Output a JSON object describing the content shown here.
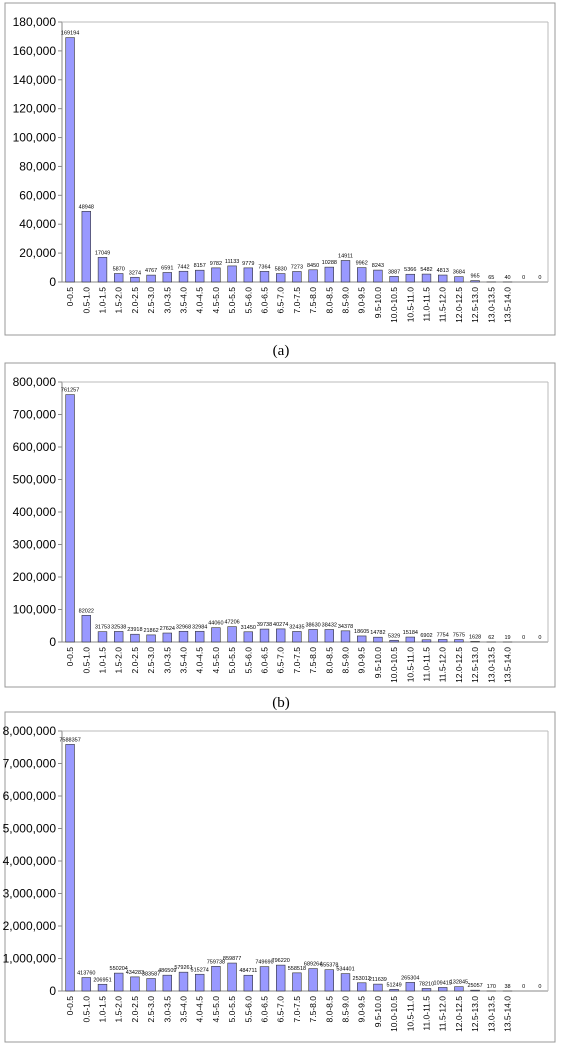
{
  "chart_data": [
    {
      "type": "bar",
      "color": "#9999ff",
      "categories": [
        "0-0.5",
        "0.5-1.0",
        "1.0-1.5",
        "1.5-2.0",
        "2.0-2.5",
        "2.5-3.0",
        "3.0-3.5",
        "3.5-4.0",
        "4.0-4.5",
        "4.5-5.0",
        "5.0-5.5",
        "5.5-6.0",
        "6.0-6.5",
        "6.5-7.0",
        "7.0-7.5",
        "7.5-8.0",
        "8.0-8.5",
        "8.5-9.0",
        "9.0-9.5",
        "9.5-10.0",
        "10.0-10.5",
        "10.5-11.0",
        "11.0-11.5",
        "11.5-12.0",
        "12.0-12.5",
        "12.5-13.0",
        "13.0-13.5",
        "13.5-14.0",
        null,
        null
      ],
      "values": [
        169194,
        48948,
        17049,
        5870,
        3274,
        4767,
        6591,
        7442,
        8157,
        9782,
        11133,
        9779,
        7364,
        5830,
        7273,
        8450,
        10288,
        14911,
        9962,
        8243,
        3887,
        5366,
        5482,
        4813,
        3684,
        965,
        65,
        40,
        0,
        0
      ],
      "ylim": [
        0,
        180000
      ],
      "yticks": [
        0,
        {
          "value": 20000,
          "label": "20,000"
        },
        {
          "value": 40000,
          "label": "40,000"
        },
        {
          "value": 60000,
          "label": "60,000"
        },
        {
          "value": 80000,
          "label": "80,000"
        },
        {
          "value": 100000,
          "label": "100,000"
        },
        {
          "value": 120000,
          "label": "120,000"
        },
        {
          "value": 140000,
          "label": "140,000"
        },
        {
          "value": 160000,
          "label": "160,000"
        },
        {
          "value": 180000,
          "label": "180,000"
        }
      ],
      "caption": "(a)"
    },
    {
      "type": "bar",
      "color": "#9999ff",
      "categories": [
        "0-0.5",
        "0.5-1.0",
        "1.0-1.5",
        "1.5-2.0",
        "2.0-2.5",
        "2.5-3.0",
        "3.0-3.5",
        "3.5-4.0",
        "4.0-4.5",
        "4.5-5.0",
        "5.0-5.5",
        "5.5-6.0",
        "6.0-6.5",
        "6.5-7.0",
        "7.0-7.5",
        "7.5-8.0",
        "8.0-8.5",
        "8.5-9.0",
        "9.0-9.5",
        "9.5-10.0",
        "10.0-10.5",
        "10.5-11.0",
        "11.0-11.5",
        "11.5-12.0",
        "12.0-12.5",
        "12.5-13.0",
        "13.0-13.5",
        "13.5-14.0",
        null,
        null
      ],
      "values": [
        761257,
        82022,
        31753,
        32538,
        23918,
        21862,
        27624,
        32968,
        32984,
        44060,
        47206,
        31450,
        39738,
        40274,
        32435,
        38630,
        38432,
        34378,
        18605,
        14782,
        5329,
        15184,
        6902,
        7754,
        7575,
        1628,
        62,
        19,
        0,
        0
      ],
      "ylim": [
        0,
        800000
      ],
      "yticks": [
        0,
        {
          "value": 100000,
          "label": "100,000"
        },
        {
          "value": 200000,
          "label": "200,000"
        },
        {
          "value": 300000,
          "label": "300,000"
        },
        {
          "value": 400000,
          "label": "400,000"
        },
        {
          "value": 500000,
          "label": "500,000"
        },
        {
          "value": 600000,
          "label": "600,000"
        },
        {
          "value": 700000,
          "label": "700,000"
        },
        {
          "value": 800000,
          "label": "800,000"
        }
      ],
      "caption": "(b)"
    },
    {
      "type": "bar",
      "color": "#9999ff",
      "categories": [
        "0-0.5",
        "0.5-1.0",
        "1.0-1.5",
        "1.5-2.0",
        "2.0-2.5",
        "2.5-3.0",
        "3.0-3.5",
        "3.5-4.0",
        "4.0-4.5",
        "4.5-5.0",
        "5.0-5.5",
        "5.5-6.0",
        "6.0-6.5",
        "6.5-7.0",
        "7.0-7.5",
        "7.5-8.0",
        "8.0-8.5",
        "8.5-9.0",
        "9.0-9.5",
        "9.5-10.0",
        "10.0-10.5",
        "10.5-11.0",
        "11.0-11.5",
        "11.5-12.0",
        "12.0-12.5",
        "12.5-13.0",
        "13.0-13.5",
        "13.5-14.0",
        null,
        null
      ],
      "values": [
        7588357,
        413760,
        206951,
        550204,
        434283,
        383587,
        486509,
        579261,
        515274,
        759738,
        859877,
        484711,
        749690,
        796220,
        558518,
        689264,
        655378,
        534401,
        253012,
        211639,
        51249,
        265304,
        78210,
        109415,
        132845,
        25057,
        170,
        38,
        0,
        0
      ],
      "ylim": [
        0,
        8000000
      ],
      "yticks": [
        0,
        {
          "value": 1000000,
          "label": "1,000,000"
        },
        {
          "value": 2000000,
          "label": "2,000,000"
        },
        {
          "value": 3000000,
          "label": "3,000,000"
        },
        {
          "value": 4000000,
          "label": "4,000,000"
        },
        {
          "value": 5000000,
          "label": "5,000,000"
        },
        {
          "value": 6000000,
          "label": "6,000,000"
        },
        {
          "value": 7000000,
          "label": "7,000,000"
        },
        {
          "value": 8000000,
          "label": "8,000,000"
        }
      ]
    }
  ]
}
